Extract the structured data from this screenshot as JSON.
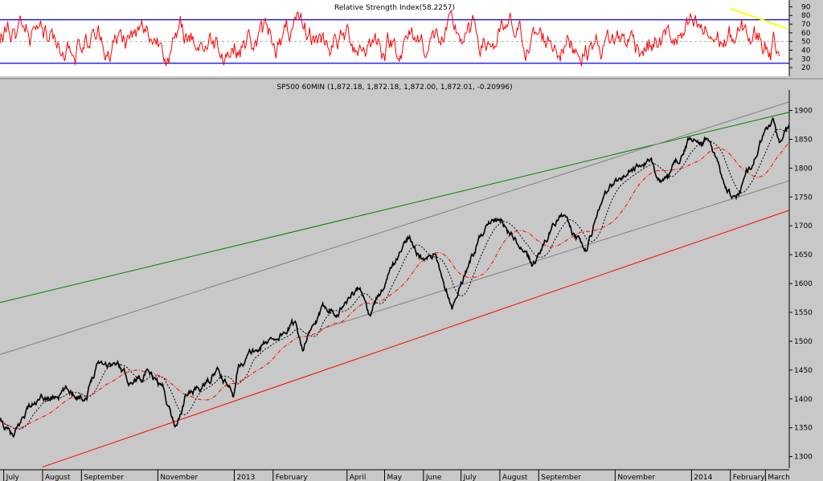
{
  "chart_data": [
    {
      "type": "line",
      "panel": "rsi",
      "title": "Relative Strength Index(58.2257)",
      "ylim": [
        10,
        95
      ],
      "y_ticks": [
        20,
        30,
        40,
        50,
        60,
        70,
        80,
        90
      ],
      "reference_lines": [
        {
          "y": 75,
          "color": "#0000ff"
        },
        {
          "y": 25,
          "color": "#0000ff"
        },
        {
          "y": 50,
          "color": "#808080",
          "style": "dashed"
        }
      ],
      "series": [
        {
          "color": "#ff0000",
          "seed": 7,
          "min": 18,
          "max": 86
        }
      ],
      "trendline": {
        "color": "#ffff00",
        "points": [
          [
            "2014-02-01",
            88
          ],
          [
            "2014-03-18",
            65
          ]
        ]
      }
    },
    {
      "type": "line",
      "panel": "price",
      "title": "SP500 60MIN (1,872.18, 1,872.18, 1,872.00, 1,872.01, -0.20996)",
      "ylim": [
        1280,
        1930
      ],
      "y_ticks": [
        1300,
        1350,
        1400,
        1450,
        1500,
        1550,
        1600,
        1650,
        1700,
        1750,
        1800,
        1850,
        1900
      ],
      "x_ticks": [
        {
          "label": "July",
          "date": "2012-07-01"
        },
        {
          "label": "August",
          "date": "2012-08-01"
        },
        {
          "label": "September",
          "date": "2012-09-01"
        },
        {
          "label": "November",
          "date": "2012-11-01"
        },
        {
          "label": "2013",
          "date": "2013-01-01"
        },
        {
          "label": "February",
          "date": "2013-02-01"
        },
        {
          "label": "April",
          "date": "2013-04-01"
        },
        {
          "label": "May",
          "date": "2013-05-01"
        },
        {
          "label": "June",
          "date": "2013-06-01"
        },
        {
          "label": "July",
          "date": "2013-07-01"
        },
        {
          "label": "August",
          "date": "2013-08-01"
        },
        {
          "label": "September",
          "date": "2013-09-01"
        },
        {
          "label": "November",
          "date": "2013-11-01"
        },
        {
          "label": "2014",
          "date": "2014-01-01"
        },
        {
          "label": "February",
          "date": "2014-02-01"
        },
        {
          "label": "March",
          "date": "2014-03-01"
        }
      ],
      "xlim": [
        "2012-06-28",
        "2014-03-20"
      ],
      "price_anchors": [
        [
          "2012-06-28",
          1360
        ],
        [
          "2012-07-09",
          1330
        ],
        [
          "2012-07-20",
          1385
        ],
        [
          "2012-08-10",
          1405
        ],
        [
          "2012-08-20",
          1415
        ],
        [
          "2012-09-05",
          1405
        ],
        [
          "2012-09-14",
          1468
        ],
        [
          "2012-10-01",
          1458
        ],
        [
          "2012-10-10",
          1430
        ],
        [
          "2012-10-22",
          1445
        ],
        [
          "2012-11-05",
          1420
        ],
        [
          "2012-11-15",
          1350
        ],
        [
          "2012-11-23",
          1405
        ],
        [
          "2012-12-10",
          1425
        ],
        [
          "2012-12-18",
          1450
        ],
        [
          "2012-12-31",
          1405
        ],
        [
          "2013-01-04",
          1463
        ],
        [
          "2013-01-30",
          1502
        ],
        [
          "2013-02-19",
          1530
        ],
        [
          "2013-02-25",
          1490
        ],
        [
          "2013-03-15",
          1560
        ],
        [
          "2013-03-25",
          1555
        ],
        [
          "2013-04-11",
          1595
        ],
        [
          "2013-04-18",
          1545
        ],
        [
          "2013-05-21",
          1685
        ],
        [
          "2013-05-31",
          1640
        ],
        [
          "2013-06-10",
          1645
        ],
        [
          "2013-06-24",
          1565
        ],
        [
          "2013-07-19",
          1695
        ],
        [
          "2013-08-02",
          1710
        ],
        [
          "2013-08-19",
          1655
        ],
        [
          "2013-08-27",
          1630
        ],
        [
          "2013-09-18",
          1725
        ],
        [
          "2013-09-30",
          1680
        ],
        [
          "2013-10-09",
          1655
        ],
        [
          "2013-10-22",
          1755
        ],
        [
          "2013-11-15",
          1800
        ],
        [
          "2013-11-27",
          1810
        ],
        [
          "2013-12-12",
          1775
        ],
        [
          "2013-12-31",
          1850
        ],
        [
          "2014-01-15",
          1850
        ],
        [
          "2014-01-24",
          1790
        ],
        [
          "2014-02-05",
          1740
        ],
        [
          "2014-02-28",
          1860
        ],
        [
          "2014-03-07",
          1880
        ],
        [
          "2014-03-13",
          1840
        ],
        [
          "2014-03-20",
          1872
        ]
      ],
      "series": [
        {
          "color": "#000000",
          "kind": "price"
        },
        {
          "color": "#000000",
          "kind": "fast_ma",
          "style": "dotted"
        },
        {
          "color": "#ff0000",
          "kind": "slow_ma",
          "style": "dashdot"
        }
      ],
      "trendlines": [
        {
          "color": "#008000",
          "points": [
            [
              "2012-06-28",
              1567
            ],
            [
              "2014-03-20",
              1897
            ]
          ]
        },
        {
          "color": "#808080",
          "points": [
            [
              "2012-06-28",
              1477
            ],
            [
              "2014-03-20",
              1915
            ]
          ]
        },
        {
          "color": "#808080",
          "points": [
            [
              "2013-03-10",
              1520
            ],
            [
              "2014-03-20",
              1778
            ]
          ]
        },
        {
          "color": "#ff0000",
          "points": [
            [
              "2012-08-01",
              1282
            ],
            [
              "2014-03-20",
              1727
            ]
          ]
        }
      ]
    }
  ]
}
